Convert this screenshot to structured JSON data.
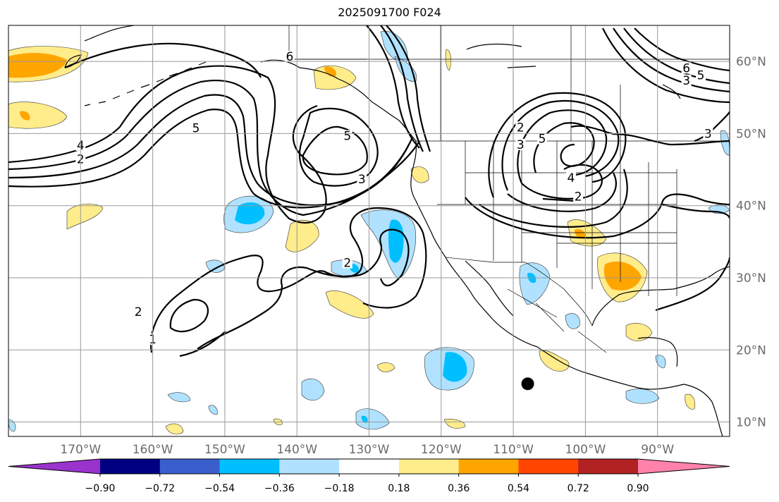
{
  "title": "2025091700 F024",
  "map": {
    "lon_range": [
      -180,
      -80
    ],
    "lat_range": [
      8,
      65
    ],
    "lon_ticks": [
      {
        "value": -170,
        "label": "170°W"
      },
      {
        "value": -160,
        "label": "160°W"
      },
      {
        "value": -150,
        "label": "150°W"
      },
      {
        "value": -140,
        "label": "140°W"
      },
      {
        "value": -130,
        "label": "130°W"
      },
      {
        "value": -120,
        "label": "120°W"
      },
      {
        "value": -110,
        "label": "110°W"
      },
      {
        "value": -100,
        "label": "100°W"
      },
      {
        "value": -90,
        "label": "90°W"
      }
    ],
    "lat_ticks": [
      {
        "value": 10,
        "label": "10°N"
      },
      {
        "value": 20,
        "label": "20°N"
      },
      {
        "value": 30,
        "label": "30°N"
      },
      {
        "value": 40,
        "label": "40°N"
      },
      {
        "value": 50,
        "label": "50°N"
      },
      {
        "value": 60,
        "label": "60°N"
      }
    ],
    "grid": true,
    "marker": {
      "lon": -108,
      "lat": 15.3,
      "color": "#000000"
    },
    "contour_labels": [
      {
        "text": "5",
        "lon": -154,
        "lat": 50.5
      },
      {
        "text": "4",
        "lon": -170,
        "lat": 48.1
      },
      {
        "text": "2",
        "lon": -170,
        "lat": 46.2
      },
      {
        "text": "6",
        "lon": -141,
        "lat": 60.4
      },
      {
        "text": "5",
        "lon": -133,
        "lat": 49.4
      },
      {
        "text": "3",
        "lon": -131,
        "lat": 43.4
      },
      {
        "text": "2",
        "lon": -133,
        "lat": 31.8
      },
      {
        "text": "2",
        "lon": -162,
        "lat": 25.0
      },
      {
        "text": "1",
        "lon": -160,
        "lat": 21.2
      },
      {
        "text": "2",
        "lon": -109,
        "lat": 50.6
      },
      {
        "text": "3",
        "lon": -109,
        "lat": 48.2
      },
      {
        "text": "5",
        "lon": -106,
        "lat": 49.0
      },
      {
        "text": "4",
        "lon": -102,
        "lat": 43.6
      },
      {
        "text": "2",
        "lon": -101,
        "lat": 41.0
      },
      {
        "text": "6",
        "lon": -86,
        "lat": 58.8
      },
      {
        "text": "5",
        "lon": -84,
        "lat": 57.8
      },
      {
        "text": "3",
        "lon": -86,
        "lat": 57.1
      },
      {
        "text": "3",
        "lon": -83,
        "lat": 49.7
      }
    ]
  },
  "colorbar": {
    "ticks": [
      "−0.90",
      "−0.72",
      "−0.54",
      "−0.36",
      "−0.18",
      "0.18",
      "0.36",
      "0.54",
      "0.72",
      "0.90"
    ],
    "colors": [
      "#9933cc",
      "#000080",
      "#3a5fcd",
      "#00bfff",
      "#b0e2ff",
      "#ffffff",
      "#ffec8b",
      "#ffa500",
      "#ff4500",
      "#b22222",
      "#ff82ab"
    ]
  },
  "fill_colors": {
    "light_blue": "#b0e2ff",
    "deep_sky_blue": "#00bfff",
    "light_yellow": "#ffec8b",
    "orange": "#ffa500"
  }
}
